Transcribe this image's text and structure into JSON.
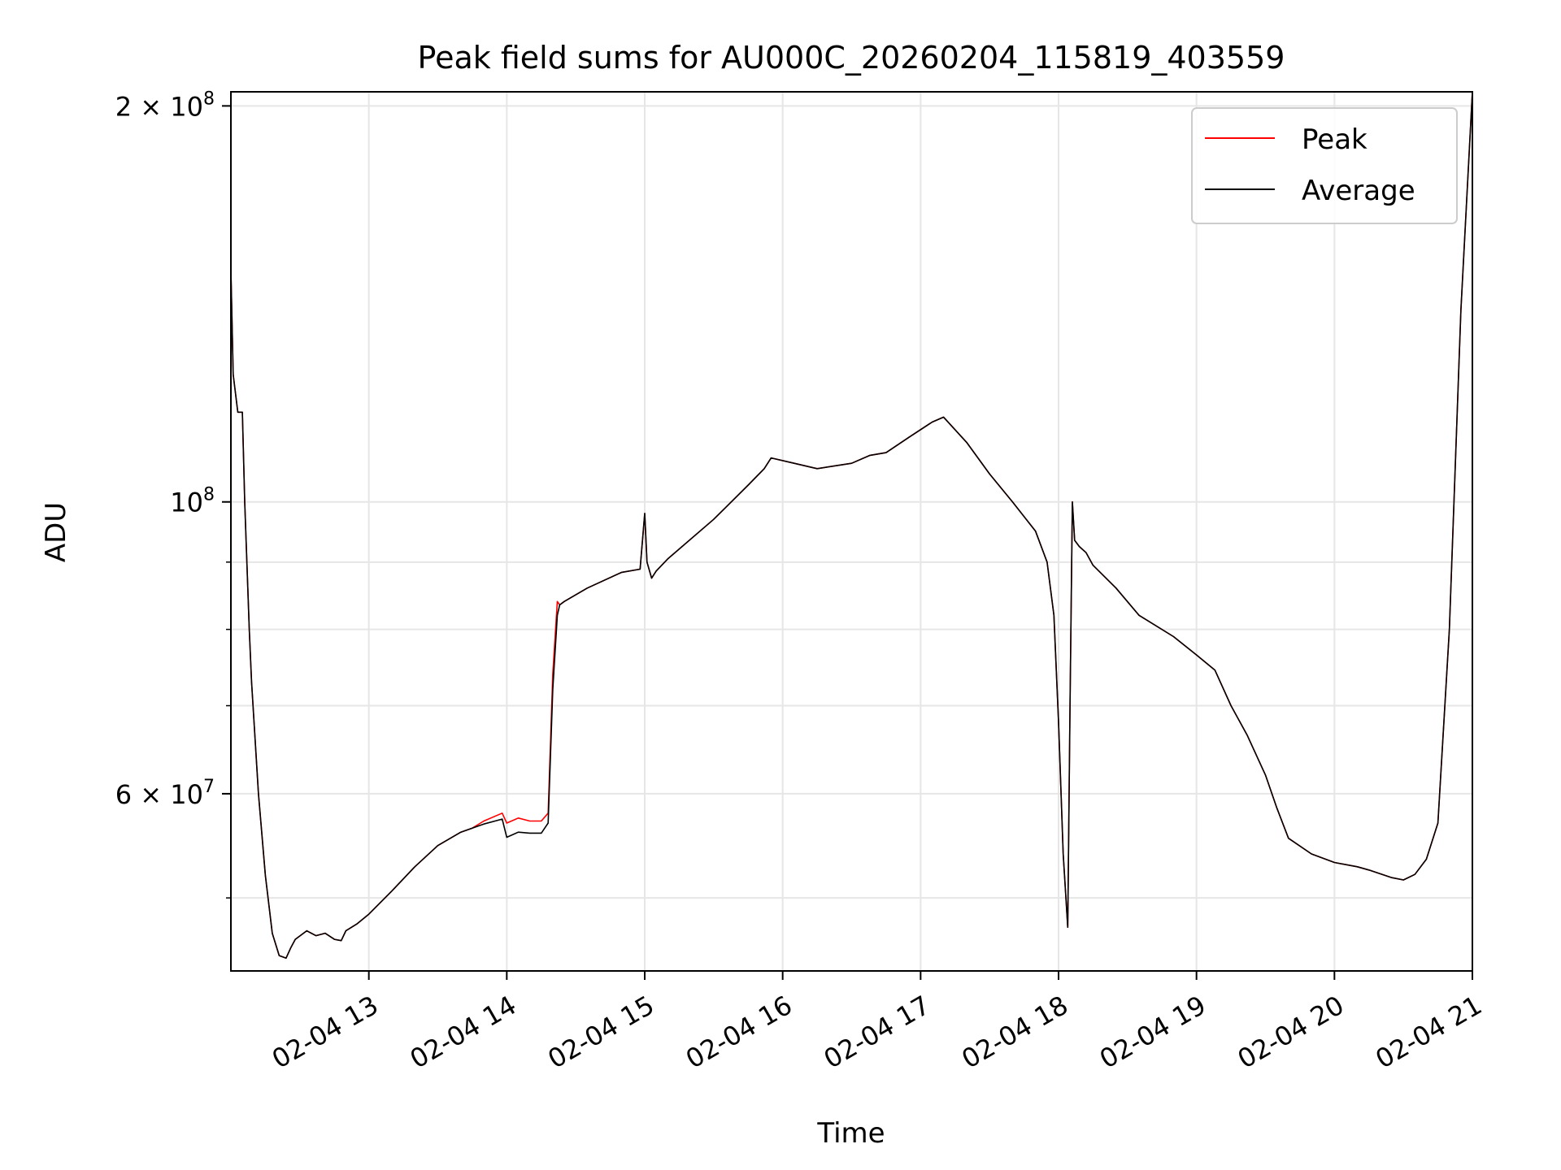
{
  "chart_data": {
    "type": "line",
    "title": "Peak field sums for AU000C_20260204_115819_403559",
    "xlabel": "Time",
    "ylabel": "ADU",
    "yscale": "log",
    "ylim": [
      44000000,
      205000000
    ],
    "xlim": [
      "2026-02-04 12:00",
      "2026-02-04 21:00"
    ],
    "x_ticks": [
      "02-04 13",
      "02-04 14",
      "02-04 15",
      "02-04 16",
      "02-04 17",
      "02-04 18",
      "02-04 19",
      "02-04 20",
      "02-04 21"
    ],
    "y_ticks": [
      {
        "value": 200000000,
        "mantissa": "2",
        "exp": "8"
      },
      {
        "value": 100000000,
        "mantissa": "",
        "exp": "8"
      },
      {
        "value": 60000000,
        "mantissa": "6",
        "exp": "7"
      }
    ],
    "y_minor_ticks": [
      50000000,
      70000000,
      80000000,
      90000000
    ],
    "grid": true,
    "legend_position": "top-right",
    "series": [
      {
        "name": "Peak",
        "color": "#ff0000"
      },
      {
        "name": "Average",
        "color": "#000000"
      }
    ],
    "x": [
      "2026-02-04 12:00",
      "2026-02-04 12:01",
      "2026-02-04 12:03",
      "2026-02-04 12:05",
      "2026-02-04 12:06",
      "2026-02-04 12:08",
      "2026-02-04 12:09",
      "2026-02-04 12:12",
      "2026-02-04 12:15",
      "2026-02-04 12:18",
      "2026-02-04 12:21",
      "2026-02-04 12:24",
      "2026-02-04 12:26",
      "2026-02-04 12:28",
      "2026-02-04 12:33",
      "2026-02-04 12:37",
      "2026-02-04 12:41",
      "2026-02-04 12:45",
      "2026-02-04 12:48",
      "2026-02-04 12:50",
      "2026-02-04 12:55",
      "2026-02-04 13:00",
      "2026-02-04 13:10",
      "2026-02-04 13:20",
      "2026-02-04 13:30",
      "2026-02-04 13:40",
      "2026-02-04 13:45",
      "2026-02-04 13:50",
      "2026-02-04 13:58",
      "2026-02-04 14:00",
      "2026-02-04 14:05",
      "2026-02-04 14:10",
      "2026-02-04 14:15",
      "2026-02-04 14:18",
      "2026-02-04 14:20",
      "2026-02-04 14:22",
      "2026-02-04 14:23",
      "2026-02-04 14:25",
      "2026-02-04 14:35",
      "2026-02-04 14:50",
      "2026-02-04 14:58",
      "2026-02-04 15:00",
      "2026-02-04 15:01",
      "2026-02-04 15:03",
      "2026-02-04 15:05",
      "2026-02-04 15:10",
      "2026-02-04 15:30",
      "2026-02-04 15:45",
      "2026-02-04 15:52",
      "2026-02-04 15:55",
      "2026-02-04 16:05",
      "2026-02-04 16:15",
      "2026-02-04 16:30",
      "2026-02-04 16:38",
      "2026-02-04 16:45",
      "2026-02-04 16:55",
      "2026-02-04 17:05",
      "2026-02-04 17:10",
      "2026-02-04 17:20",
      "2026-02-04 17:30",
      "2026-02-04 17:40",
      "2026-02-04 17:50",
      "2026-02-04 17:55",
      "2026-02-04 17:58",
      "2026-02-04 18:00",
      "2026-02-04 18:02",
      "2026-02-04 18:04",
      "2026-02-04 18:05",
      "2026-02-04 18:06",
      "2026-02-04 18:07",
      "2026-02-04 18:09",
      "2026-02-04 18:12",
      "2026-02-04 18:15",
      "2026-02-04 18:25",
      "2026-02-04 18:35",
      "2026-02-04 18:50",
      "2026-02-04 19:00",
      "2026-02-04 19:08",
      "2026-02-04 19:15",
      "2026-02-04 19:22",
      "2026-02-04 19:30",
      "2026-02-04 19:35",
      "2026-02-04 19:40",
      "2026-02-04 19:50",
      "2026-02-04 20:00",
      "2026-02-04 20:10",
      "2026-02-04 20:15",
      "2026-02-04 20:25",
      "2026-02-04 20:30",
      "2026-02-04 20:35",
      "2026-02-04 20:40",
      "2026-02-04 20:45",
      "2026-02-04 20:50",
      "2026-02-04 20:55",
      "2026-02-04 21:00"
    ],
    "average": [
      150000000,
      125000000,
      117000000,
      117000000,
      100000000,
      80000000,
      73000000,
      60000000,
      52000000,
      47000000,
      45200000,
      45000000,
      45800000,
      46500000,
      47200000,
      46800000,
      47000000,
      46500000,
      46400000,
      47200000,
      47800000,
      48600000,
      50600000,
      52800000,
      54800000,
      56100000,
      56500000,
      56900000,
      57400000,
      55600000,
      56100000,
      56000000,
      56000000,
      57000000,
      72000000,
      82000000,
      83500000,
      84000000,
      86000000,
      88400000,
      88900000,
      98000000,
      90000000,
      87500000,
      88600000,
      90500000,
      97000000,
      103000000,
      106000000,
      108000000,
      107000000,
      106000000,
      107000000,
      108500000,
      109000000,
      112000000,
      115000000,
      116000000,
      111000000,
      105000000,
      100000000,
      95000000,
      90000000,
      82000000,
      68000000,
      54000000,
      47500000,
      70000000,
      100000000,
      93500000,
      92500000,
      91500000,
      89500000,
      86000000,
      82000000,
      79000000,
      76500000,
      74500000,
      70000000,
      66500000,
      62000000,
      58500000,
      55500000,
      54000000,
      53200000,
      52800000,
      52500000,
      51800000,
      51600000,
      52100000,
      53500000,
      57000000,
      80000000,
      140000000,
      205000000
    ],
    "peak": [
      150000000,
      125000000,
      117000000,
      117000000,
      100000000,
      80000000,
      73000000,
      60000000,
      52000000,
      47000000,
      45200000,
      45000000,
      45800000,
      46500000,
      47200000,
      46800000,
      47000000,
      46500000,
      46400000,
      47200000,
      47800000,
      48600000,
      50600000,
      52800000,
      54800000,
      56100000,
      56500000,
      57200000,
      58000000,
      57000000,
      57500000,
      57200000,
      57200000,
      58000000,
      74000000,
      84000000,
      83500000,
      84000000,
      86000000,
      88400000,
      88900000,
      98000000,
      90000000,
      87500000,
      88600000,
      90500000,
      97000000,
      103000000,
      106000000,
      108000000,
      107000000,
      106000000,
      107000000,
      108500000,
      109000000,
      112000000,
      115000000,
      116000000,
      111000000,
      105000000,
      100000000,
      95000000,
      90000000,
      82000000,
      68000000,
      54000000,
      47500000,
      70000000,
      100000000,
      93500000,
      92500000,
      91500000,
      89500000,
      86000000,
      82000000,
      79000000,
      76500000,
      74500000,
      70000000,
      66500000,
      62000000,
      58500000,
      55500000,
      54000000,
      53200000,
      52800000,
      52500000,
      51800000,
      51600000,
      52100000,
      53500000,
      57000000,
      80000000,
      140000000,
      205000000
    ]
  }
}
